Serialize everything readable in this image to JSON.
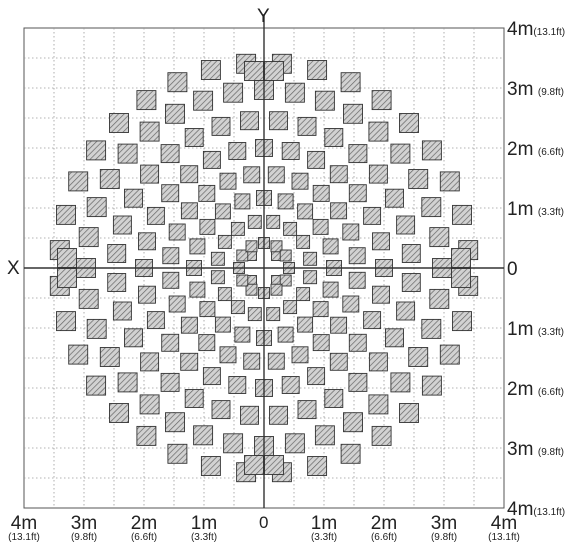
{
  "axes": {
    "x_label": "X",
    "y_label": "Y",
    "origin_label": "0"
  },
  "right_labels": [
    {
      "m": "4m",
      "ft": "(13.1ft)"
    },
    {
      "m": "3m",
      "ft": "(9.8ft)"
    },
    {
      "m": "2m",
      "ft": "(6.6ft)"
    },
    {
      "m": "1m",
      "ft": "(3.3ft)"
    },
    {
      "m": "0",
      "ft": ""
    },
    {
      "m": "1m",
      "ft": "(3.3ft)"
    },
    {
      "m": "2m",
      "ft": "(6.6ft)"
    },
    {
      "m": "3m",
      "ft": "(9.8ft)"
    },
    {
      "m": "4m",
      "ft": "(13.1ft)"
    }
  ],
  "bottom_labels": [
    {
      "m": "4m",
      "ft": "(13.1ft)"
    },
    {
      "m": "3m",
      "ft": "(9.8ft)"
    },
    {
      "m": "2m",
      "ft": "(6.6ft)"
    },
    {
      "m": "1m",
      "ft": "(3.3ft)"
    },
    {
      "m": "0",
      "ft": ""
    },
    {
      "m": "1m",
      "ft": "(3.3ft)"
    },
    {
      "m": "2m",
      "ft": "(6.6ft)"
    },
    {
      "m": "3m",
      "ft": "(9.8ft)"
    },
    {
      "m": "4m",
      "ft": "(13.1ft)"
    }
  ],
  "pattern": {
    "range_m": 4,
    "grid_step_m": 0.5,
    "cell_fill": "#c8c8c8",
    "hatch_color": "#555555"
  }
}
